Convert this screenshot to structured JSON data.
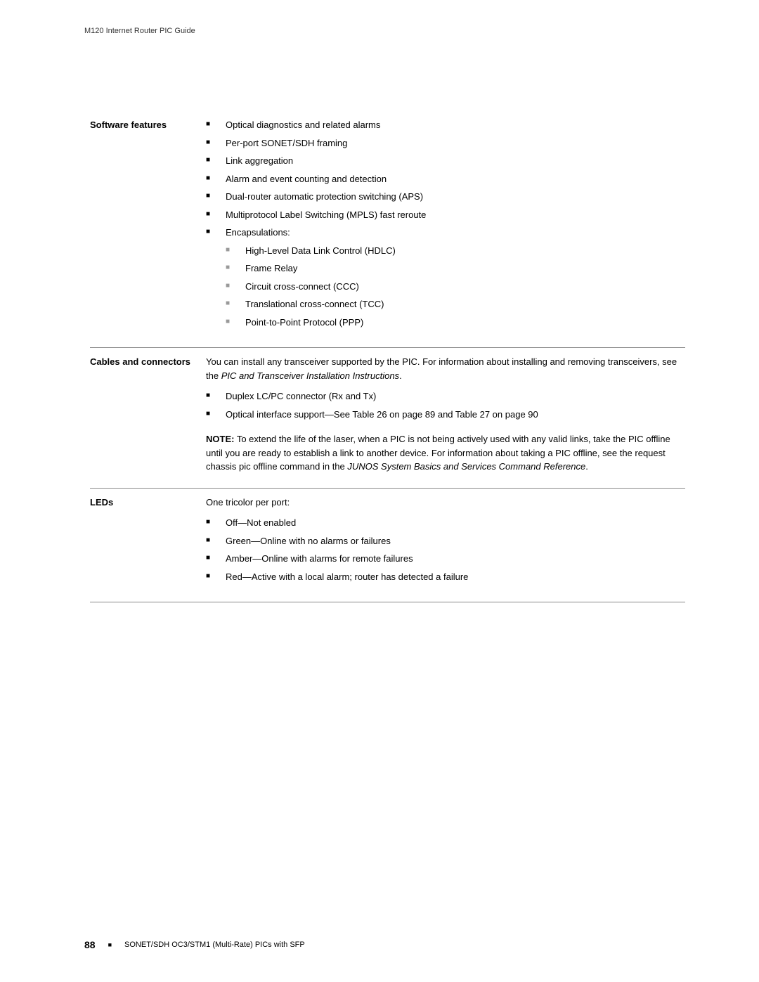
{
  "header": {
    "doc_title": "M120 Internet Router PIC Guide"
  },
  "sections": [
    {
      "label": "Software features",
      "items": [
        {
          "text": "Optical diagnostics and related alarms"
        },
        {
          "text": "Per-port SONET/SDH framing"
        },
        {
          "text": "Link aggregation"
        },
        {
          "text": "Alarm and event counting and detection"
        },
        {
          "text": "Dual-router automatic protection switching (APS)"
        },
        {
          "text": "Multiprotocol Label Switching (MPLS) fast reroute"
        },
        {
          "text": "Encapsulations:",
          "sub": [
            {
              "text": "High-Level Data Link Control (HDLC)"
            },
            {
              "text": "Frame Relay"
            },
            {
              "text": "Circuit cross-connect (CCC)"
            },
            {
              "text": "Translational cross-connect (TCC)"
            },
            {
              "text": "Point-to-Point Protocol (PPP)"
            }
          ]
        }
      ]
    },
    {
      "label": "Cables and connectors",
      "intro": {
        "pre": "You can install any transceiver supported by the PIC. For information about installing and removing transceivers, see the ",
        "italic": "PIC and Transceiver Installation Instructions",
        "post": "."
      },
      "items": [
        {
          "text": "Duplex LC/PC connector (Rx and Tx)"
        },
        {
          "text": "Optical interface support—See Table 26 on page 89 and Table 27 on page 90"
        }
      ],
      "note": {
        "label": "NOTE:",
        "body_pre": " To extend the life of the laser, when a PIC is not being actively used with any valid links, take the PIC offline until you are ready to establish a link to another device. For information about taking a PIC offline, see the ",
        "cmd": "request chassis pic offline",
        "body_mid": " command in the ",
        "italic": "JUNOS System Basics and Services Command Reference",
        "body_post": "."
      }
    },
    {
      "label": "LEDs",
      "intro_plain": "One tricolor per port:",
      "items": [
        {
          "text": "Off—Not enabled"
        },
        {
          "text": "Green—Online with no alarms or failures"
        },
        {
          "text": "Amber—Online with alarms for remote failures"
        },
        {
          "text": "Red—Active with a local alarm; router has detected a failure"
        }
      ]
    }
  ],
  "footer": {
    "page_number": "88",
    "section_title": "SONET/SDH OC3/STM1 (Multi-Rate) PICs with SFP"
  }
}
